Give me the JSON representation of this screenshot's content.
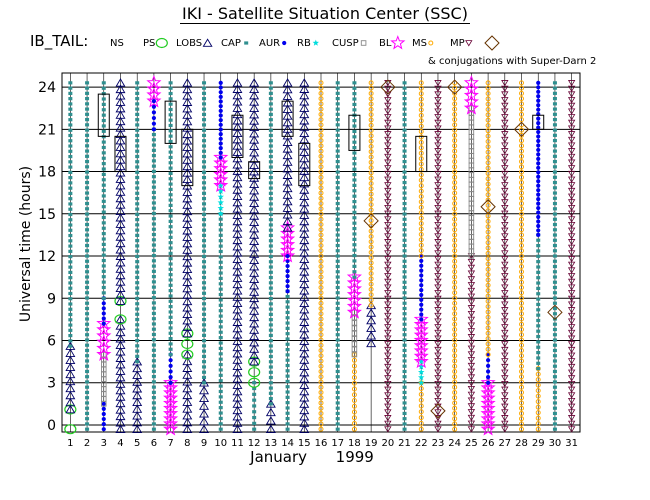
{
  "title": "IKI - Satellite Situation Center (SSC)",
  "series_label": "IB_TAIL:",
  "conjugations_note": "& conjugations with Super-Darn 2",
  "colors": {
    "NS": "#22cc22",
    "PS": "#22cc22",
    "LOBS": "#000066",
    "CAP": "#2f8f8f",
    "AUR": "#0000ee",
    "RB": "#00dddd",
    "CUSP": "#888888",
    "BL": "#ff00ff",
    "MS": "#ffaa00",
    "MP": "#660033",
    "SD": "#663300"
  },
  "chart_data": {
    "type": "scatter",
    "title": "IKI - Satellite Situation Center (SSC)",
    "xlabel": "January      1999",
    "ylabel": "Universal time (hours)",
    "x": [
      1,
      2,
      3,
      4,
      5,
      6,
      7,
      8,
      9,
      10,
      11,
      12,
      13,
      14,
      15,
      16,
      17,
      18,
      19,
      20,
      21,
      22,
      23,
      24,
      25,
      26,
      27,
      28,
      29,
      30,
      31
    ],
    "xlim": [
      0.5,
      31.5
    ],
    "ylim": [
      -0.5,
      25
    ],
    "yticks": [
      0,
      3,
      6,
      9,
      12,
      15,
      18,
      21,
      24
    ],
    "grid": true,
    "legend": [
      {
        "code": "NS",
        "label": "NS",
        "marker": "none"
      },
      {
        "code": "PS",
        "label": "PS",
        "marker": "circle"
      },
      {
        "code": "LOBS",
        "label": "LOBS",
        "marker": "triangle"
      },
      {
        "code": "CAP",
        "label": "CAP",
        "marker": "square"
      },
      {
        "code": "AUR",
        "label": "AUR",
        "marker": "dot"
      },
      {
        "code": "RB",
        "label": "RB",
        "marker": "star"
      },
      {
        "code": "CUSP",
        "label": "CUSP",
        "marker": "square-open"
      },
      {
        "code": "BL",
        "label": "BL",
        "marker": "star-open"
      },
      {
        "code": "MS",
        "label": "MS",
        "marker": "circle-small"
      },
      {
        "code": "MP",
        "label": "MP",
        "marker": "triangle-down"
      },
      {
        "code": "SD",
        "label": "",
        "marker": "diamond"
      }
    ],
    "segments": [
      {
        "day": 1,
        "region": "PS",
        "start": -0.3,
        "end": 1.1
      },
      {
        "day": 1,
        "region": "LOBS",
        "start": 1.1,
        "end": 5.6
      },
      {
        "day": 1,
        "region": "CAP",
        "start": 5.6,
        "end": 24.3
      },
      {
        "day": 2,
        "region": "CAP",
        "start": -0.3,
        "end": 24.3
      },
      {
        "day": 3,
        "region": "AUR",
        "start": -0.3,
        "end": 1.5
      },
      {
        "day": 3,
        "region": "CUSP",
        "start": 1.5,
        "end": 5.0
      },
      {
        "day": 3,
        "region": "BL",
        "start": 5.0,
        "end": 7.2
      },
      {
        "day": 3,
        "region": "AUR",
        "start": 7.2,
        "end": 9.0
      },
      {
        "day": 3,
        "region": "CAP",
        "start": 9.0,
        "end": 24.3
      },
      {
        "day": 4,
        "region": "LOBS",
        "start": -0.3,
        "end": 7.5
      },
      {
        "day": 4,
        "region": "PS",
        "start": 7.5,
        "end": 8.8
      },
      {
        "day": 4,
        "region": "LOBS",
        "start": 8.8,
        "end": 24.3
      },
      {
        "day": 5,
        "region": "LOBS",
        "start": -0.3,
        "end": 4.5
      },
      {
        "day": 5,
        "region": "CAP",
        "start": 4.5,
        "end": 24.3
      },
      {
        "day": 6,
        "region": "CAP",
        "start": -0.3,
        "end": 21.0
      },
      {
        "day": 6,
        "region": "AUR",
        "start": 21.0,
        "end": 23.0
      },
      {
        "day": 6,
        "region": "BL",
        "start": 23.0,
        "end": 24.3
      },
      {
        "day": 7,
        "region": "BL",
        "start": -0.3,
        "end": 3.0
      },
      {
        "day": 7,
        "region": "AUR",
        "start": 3.0,
        "end": 5.0
      },
      {
        "day": 7,
        "region": "CAP",
        "start": 5.0,
        "end": 24.3
      },
      {
        "day": 8,
        "region": "LOBS",
        "start": -0.3,
        "end": 5.0
      },
      {
        "day": 8,
        "region": "PS",
        "start": 5.0,
        "end": 6.5
      },
      {
        "day": 8,
        "region": "LOBS",
        "start": 6.5,
        "end": 24.3
      },
      {
        "day": 9,
        "region": "LOBS",
        "start": -0.3,
        "end": 3.0
      },
      {
        "day": 9,
        "region": "CAP",
        "start": 3.0,
        "end": 24.3
      },
      {
        "day": 10,
        "region": "CAP",
        "start": -0.3,
        "end": 15.0
      },
      {
        "day": 10,
        "region": "RB",
        "start": 15.0,
        "end": 17.0
      },
      {
        "day": 10,
        "region": "BL",
        "start": 17.0,
        "end": 19.0
      },
      {
        "day": 10,
        "region": "AUR",
        "start": 19.0,
        "end": 24.3
      },
      {
        "day": 11,
        "region": "LOBS",
        "start": -0.3,
        "end": 24.3
      },
      {
        "day": 12,
        "region": "CAP",
        "start": -0.3,
        "end": 3.0
      },
      {
        "day": 12,
        "region": "PS",
        "start": 3.0,
        "end": 4.5
      },
      {
        "day": 12,
        "region": "LOBS",
        "start": 4.5,
        "end": 24.3
      },
      {
        "day": 13,
        "region": "LOBS",
        "start": -0.3,
        "end": 1.5
      },
      {
        "day": 13,
        "region": "CAP",
        "start": 1.5,
        "end": 24.3
      },
      {
        "day": 14,
        "region": "CAP",
        "start": -0.3,
        "end": 9.5
      },
      {
        "day": 14,
        "region": "AUR",
        "start": 9.5,
        "end": 12.0
      },
      {
        "day": 14,
        "region": "BL",
        "start": 12.0,
        "end": 14.0
      },
      {
        "day": 14,
        "region": "LOBS",
        "start": 14.0,
        "end": 24.3
      },
      {
        "day": 15,
        "region": "LOBS",
        "start": -0.3,
        "end": 24.3
      },
      {
        "day": 16,
        "region": "MS",
        "start": -0.3,
        "end": 24.3
      },
      {
        "day": 17,
        "region": "CAP",
        "start": -0.3,
        "end": 24.3
      },
      {
        "day": 18,
        "region": "MS",
        "start": -0.3,
        "end": 5.0
      },
      {
        "day": 18,
        "region": "CUSP",
        "start": 5.0,
        "end": 8.0
      },
      {
        "day": 18,
        "region": "BL",
        "start": 8.0,
        "end": 10.5
      },
      {
        "day": 18,
        "region": "CAP",
        "start": 10.5,
        "end": 24.3
      },
      {
        "day": 19,
        "region": "LOBS",
        "start": 5.8,
        "end": 8.5
      },
      {
        "day": 19,
        "region": "MS",
        "start": 8.5,
        "end": 24.3
      },
      {
        "day": 20,
        "region": "MP",
        "start": -0.3,
        "end": 24.3
      },
      {
        "day": 21,
        "region": "CAP",
        "start": -0.3,
        "end": 24.3
      },
      {
        "day": 22,
        "region": "MS",
        "start": -0.3,
        "end": 3.0
      },
      {
        "day": 22,
        "region": "RB",
        "start": 3.0,
        "end": 4.5
      },
      {
        "day": 22,
        "region": "BL",
        "start": 4.5,
        "end": 7.5
      },
      {
        "day": 22,
        "region": "AUR",
        "start": 7.5,
        "end": 12.0
      },
      {
        "day": 22,
        "region": "MS",
        "start": 12.0,
        "end": 24.3
      },
      {
        "day": 23,
        "region": "MP",
        "start": -0.3,
        "end": 24.3
      },
      {
        "day": 24,
        "region": "MS",
        "start": -0.3,
        "end": 24.3
      },
      {
        "day": 25,
        "region": "MP",
        "start": -0.3,
        "end": 12.0
      },
      {
        "day": 25,
        "region": "CUSP",
        "start": 12.0,
        "end": 22.5
      },
      {
        "day": 25,
        "region": "BL",
        "start": 22.5,
        "end": 24.3
      },
      {
        "day": 26,
        "region": "BL",
        "start": -0.3,
        "end": 3.0
      },
      {
        "day": 26,
        "region": "AUR",
        "start": 3.0,
        "end": 5.0
      },
      {
        "day": 26,
        "region": "MS",
        "start": 5.0,
        "end": 24.3
      },
      {
        "day": 27,
        "region": "MP",
        "start": -0.3,
        "end": 24.3
      },
      {
        "day": 28,
        "region": "MS",
        "start": -0.3,
        "end": 24.3
      },
      {
        "day": 29,
        "region": "MS",
        "start": -0.3,
        "end": 4.0
      },
      {
        "day": 29,
        "region": "CAP",
        "start": 4.0,
        "end": 13.5
      },
      {
        "day": 29,
        "region": "AUR",
        "start": 13.5,
        "end": 24.3
      },
      {
        "day": 30,
        "region": "CAP",
        "start": -0.3,
        "end": 24.3
      },
      {
        "day": 31,
        "region": "MP",
        "start": -0.3,
        "end": 24.3
      }
    ],
    "conjugation_boxes": [
      {
        "day": 3,
        "start": 20.5,
        "end": 23.5
      },
      {
        "day": 4,
        "start": 18.0,
        "end": 20.5
      },
      {
        "day": 7,
        "start": 20.0,
        "end": 23.0
      },
      {
        "day": 8,
        "start": 17.0,
        "end": 21.0
      },
      {
        "day": 11,
        "start": 19.0,
        "end": 22.0
      },
      {
        "day": 12,
        "start": 17.5,
        "end": 18.7
      },
      {
        "day": 14,
        "start": 20.5,
        "end": 23.0
      },
      {
        "day": 15,
        "start": 17.0,
        "end": 20.0
      },
      {
        "day": 18,
        "start": 19.5,
        "end": 22.0
      },
      {
        "day": 22,
        "start": 18.0,
        "end": 20.5
      },
      {
        "day": 29,
        "start": 21.0,
        "end": 22.0
      }
    ],
    "diamonds": [
      {
        "day": 19,
        "y": 14.5
      },
      {
        "day": 20,
        "y": 24.0
      },
      {
        "day": 23,
        "y": 1.0
      },
      {
        "day": 24,
        "y": 24.0
      },
      {
        "day": 26,
        "y": 15.5
      },
      {
        "day": 28,
        "y": 21.0
      },
      {
        "day": 30,
        "y": 8.0
      }
    ]
  }
}
